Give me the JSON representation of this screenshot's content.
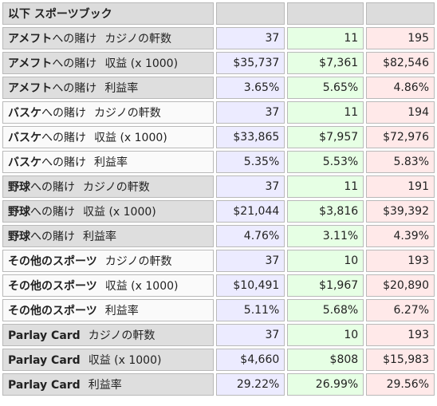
{
  "header": {
    "title": "以下 スポーツブック"
  },
  "rows": [
    {
      "sport": "アメフト",
      "suffix": "への賭け",
      "metric": "カジノの軒数",
      "v1": "37",
      "v2": "11",
      "v3": "195"
    },
    {
      "sport": "アメフト",
      "suffix": "への賭け",
      "metric": "収益 (x 1000)",
      "v1": "$35,737",
      "v2": "$7,361",
      "v3": "$82,546"
    },
    {
      "sport": "アメフト",
      "suffix": "への賭け",
      "metric": "利益率",
      "v1": "3.65%",
      "v2": "5.65%",
      "v3": "4.86%"
    },
    {
      "sport": "バスケ",
      "suffix": "への賭け",
      "metric": "カジノの軒数",
      "v1": "37",
      "v2": "11",
      "v3": "194"
    },
    {
      "sport": "バスケ",
      "suffix": "への賭け",
      "metric": "収益 (x 1000)",
      "v1": "$33,865",
      "v2": "$7,957",
      "v3": "$72,976"
    },
    {
      "sport": "バスケ",
      "suffix": "への賭け",
      "metric": "利益率",
      "v1": "5.35%",
      "v2": "5.53%",
      "v3": "5.83%"
    },
    {
      "sport": "野球",
      "suffix": "への賭け",
      "metric": "カジノの軒数",
      "v1": "37",
      "v2": "11",
      "v3": "191"
    },
    {
      "sport": "野球",
      "suffix": "への賭け",
      "metric": "収益 (x 1000)",
      "v1": "$21,044",
      "v2": "$3,816",
      "v3": "$39,392"
    },
    {
      "sport": "野球",
      "suffix": "への賭け",
      "metric": "利益率",
      "v1": "4.76%",
      "v2": "3.11%",
      "v3": "4.39%"
    },
    {
      "sport": "その他のスポーツ",
      "suffix": "",
      "metric": "カジノの軒数",
      "v1": "37",
      "v2": "10",
      "v3": "193"
    },
    {
      "sport": "その他のスポーツ",
      "suffix": "",
      "metric": "収益 (x 1000)",
      "v1": "$10,491",
      "v2": "$1,967",
      "v3": "$20,890"
    },
    {
      "sport": "その他のスポーツ",
      "suffix": "",
      "metric": "利益率",
      "v1": "5.11%",
      "v2": "5.68%",
      "v3": "6.27%"
    },
    {
      "sport": "Parlay Card",
      "suffix": "",
      "metric": "カジノの軒数",
      "v1": "37",
      "v2": "10",
      "v3": "193"
    },
    {
      "sport": "Parlay Card",
      "suffix": "",
      "metric": "収益 (x 1000)",
      "v1": "$4,660",
      "v2": "$808",
      "v3": "$15,983"
    },
    {
      "sport": "Parlay Card",
      "suffix": "",
      "metric": "利益率",
      "v1": "29.22%",
      "v2": "26.99%",
      "v3": "29.56%"
    }
  ]
}
